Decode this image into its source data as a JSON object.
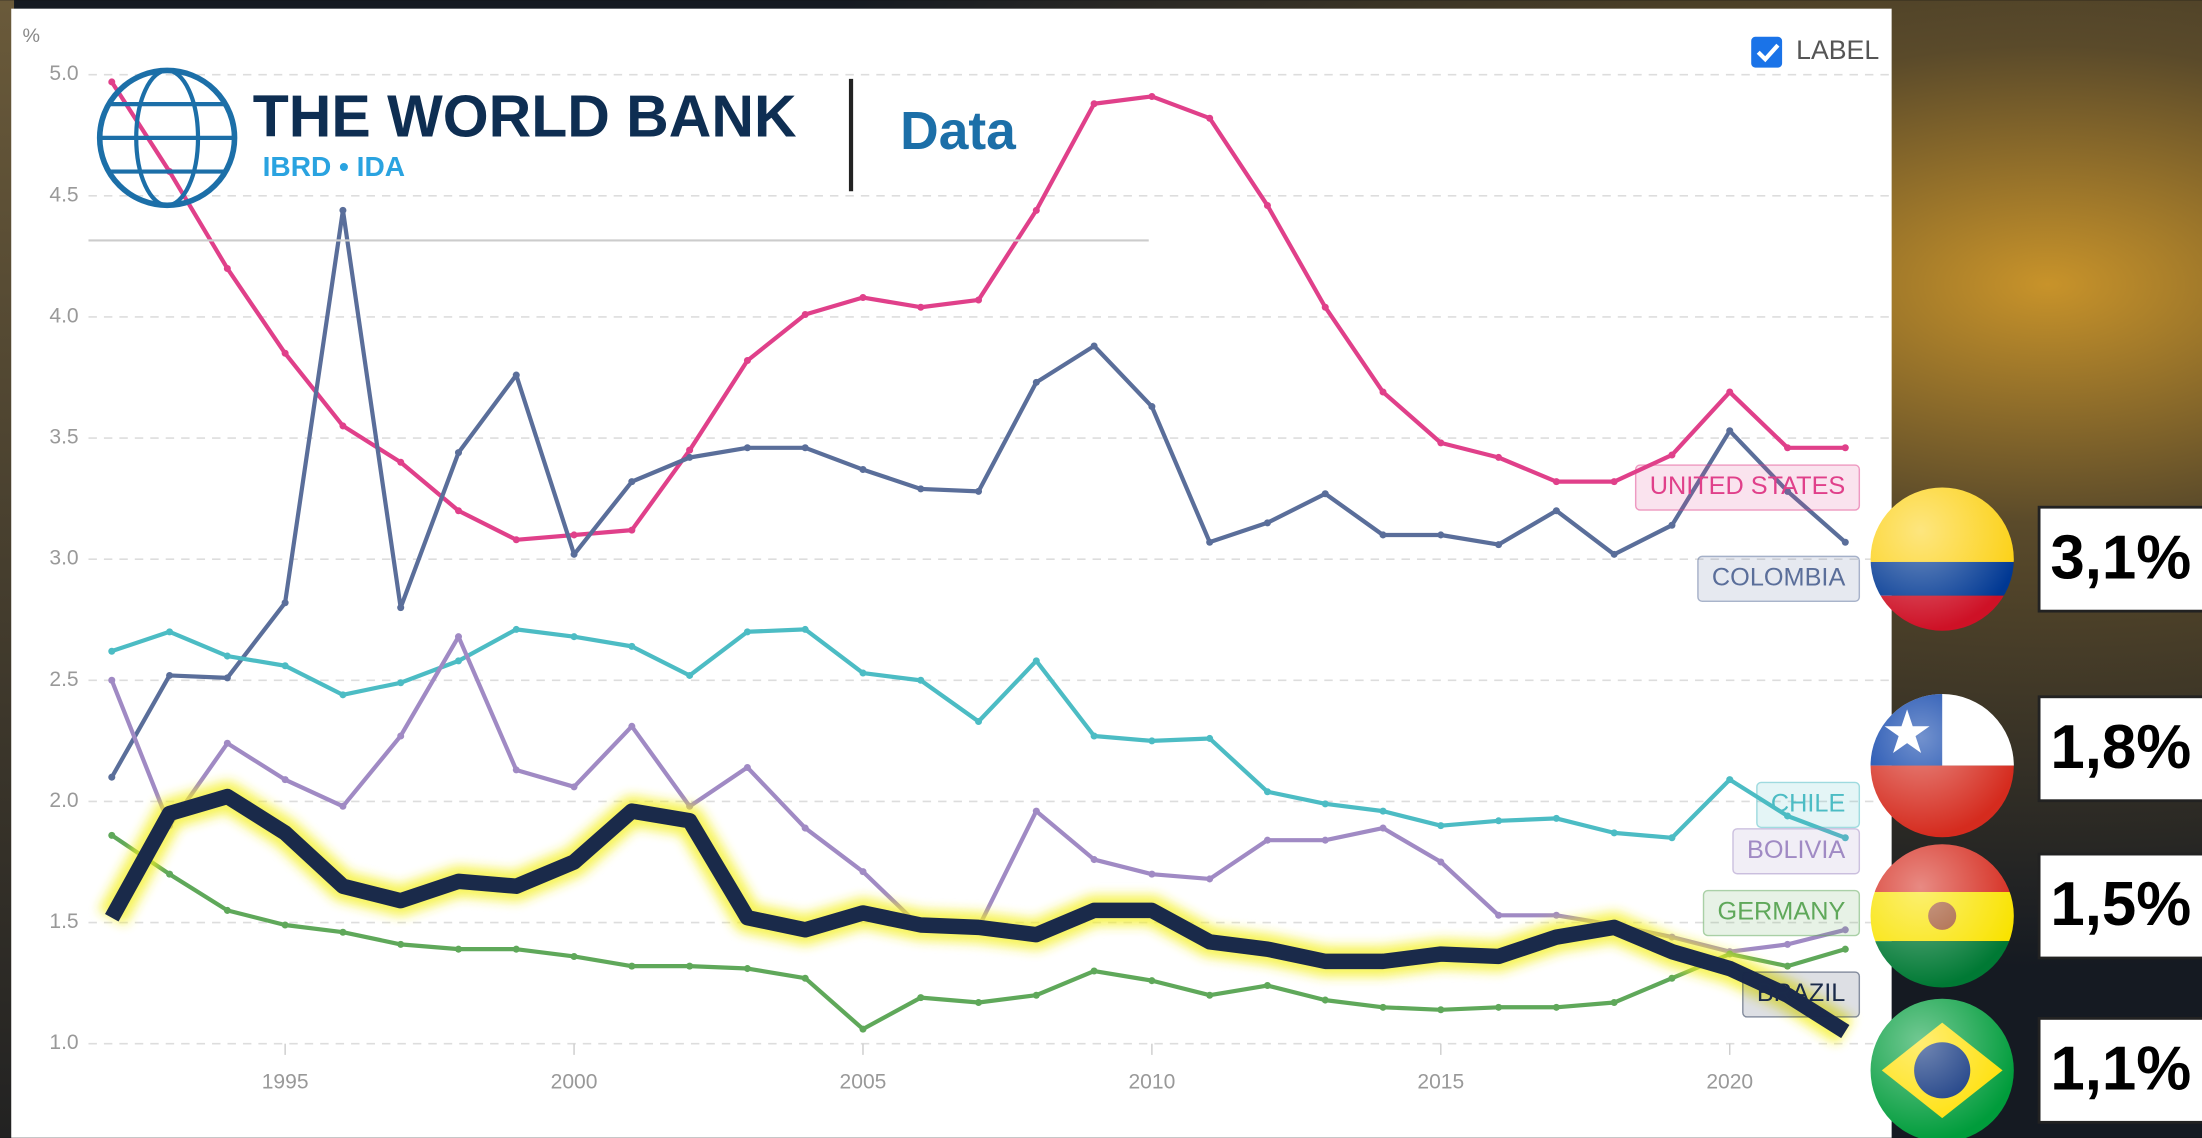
{
  "chart_data": {
    "type": "line",
    "unit_label": "%",
    "checkbox_label": "LABEL",
    "logo": {
      "title": "THE WORLD BANK",
      "subtitle": "IBRD • IDA",
      "product": "Data"
    },
    "x": [
      1992,
      1993,
      1994,
      1995,
      1996,
      1997,
      1998,
      1999,
      2000,
      2001,
      2002,
      2003,
      2004,
      2005,
      2006,
      2007,
      2008,
      2009,
      2010,
      2011,
      2012,
      2013,
      2014,
      2015,
      2016,
      2017,
      2018,
      2019,
      2020,
      2021,
      2022
    ],
    "xlim": [
      1992,
      2022
    ],
    "xticks": [
      1995,
      2000,
      2005,
      2010,
      2015,
      2020
    ],
    "ylim": [
      1,
      5
    ],
    "yticks": [
      {
        "value": 1,
        "label": "1.0"
      },
      1.5,
      {
        "value": 2,
        "label": "2.0"
      },
      2.5,
      {
        "value": 3,
        "label": "3.0"
      },
      3.5,
      {
        "value": 4,
        "label": "4.0"
      },
      4.5,
      {
        "value": 5,
        "label": "5.0"
      }
    ],
    "grid": true,
    "series": [
      {
        "name": "UNITED STATES",
        "color": "#e0408a",
        "values": [
          4.97,
          4.6,
          4.2,
          3.85,
          3.55,
          3.4,
          3.2,
          3.08,
          3.1,
          3.12,
          3.45,
          3.82,
          4.01,
          4.08,
          4.04,
          4.07,
          4.44,
          4.88,
          4.91,
          4.82,
          4.46,
          4.04,
          3.69,
          3.48,
          3.42,
          3.32,
          3.32,
          3.43,
          3.69,
          3.46,
          3.46
        ]
      },
      {
        "name": "COLOMBIA",
        "color": "#5a6e9a",
        "values": [
          2.1,
          2.52,
          2.51,
          2.82,
          4.44,
          2.8,
          3.44,
          3.76,
          3.02,
          3.32,
          3.42,
          3.46,
          3.46,
          3.37,
          3.29,
          3.28,
          3.73,
          3.88,
          3.63,
          3.07,
          3.15,
          3.27,
          3.1,
          3.1,
          3.06,
          3.2,
          3.02,
          3.14,
          3.53,
          3.28,
          3.07
        ]
      },
      {
        "name": "CHILE",
        "color": "#4cbcc4",
        "values": [
          2.62,
          2.7,
          2.6,
          2.56,
          2.44,
          2.49,
          2.58,
          2.71,
          2.68,
          2.64,
          2.52,
          2.7,
          2.71,
          2.53,
          2.5,
          2.33,
          2.58,
          2.27,
          2.25,
          2.26,
          2.04,
          1.99,
          1.96,
          1.9,
          1.92,
          1.93,
          1.87,
          1.85,
          2.09,
          1.94,
          1.85
        ]
      },
      {
        "name": "BOLIVIA",
        "color": "#a08ac4",
        "values": [
          2.5,
          1.9,
          2.24,
          2.09,
          1.98,
          2.27,
          2.68,
          2.13,
          2.06,
          2.31,
          1.98,
          2.14,
          1.89,
          1.71,
          1.48,
          1.48,
          1.96,
          1.76,
          1.7,
          1.68,
          1.84,
          1.84,
          1.89,
          1.75,
          1.53,
          1.53,
          1.49,
          1.44,
          1.38,
          1.41,
          1.47
        ]
      },
      {
        "name": "GERMANY",
        "color": "#5fa85a",
        "values": [
          1.86,
          1.7,
          1.55,
          1.49,
          1.46,
          1.41,
          1.39,
          1.39,
          1.36,
          1.32,
          1.32,
          1.31,
          1.27,
          1.06,
          1.19,
          1.17,
          1.2,
          1.3,
          1.26,
          1.2,
          1.24,
          1.18,
          1.15,
          1.14,
          1.15,
          1.15,
          1.17,
          1.27,
          1.37,
          1.32,
          1.39
        ]
      },
      {
        "name": "BRAZIL",
        "color": "#1a2a4a",
        "values": [
          1.52,
          1.95,
          2.02,
          1.87,
          1.65,
          1.59,
          1.67,
          1.65,
          1.75,
          1.96,
          1.92,
          1.52,
          1.47,
          1.54,
          1.49,
          1.48,
          1.45,
          1.55,
          1.55,
          1.42,
          1.39,
          1.34,
          1.34,
          1.37,
          1.36,
          1.44,
          1.48,
          1.38,
          1.31,
          1.2,
          1.05
        ]
      }
    ],
    "badges": [
      "3,1%",
      "1,8%",
      "1,5%",
      "1,1%"
    ]
  }
}
